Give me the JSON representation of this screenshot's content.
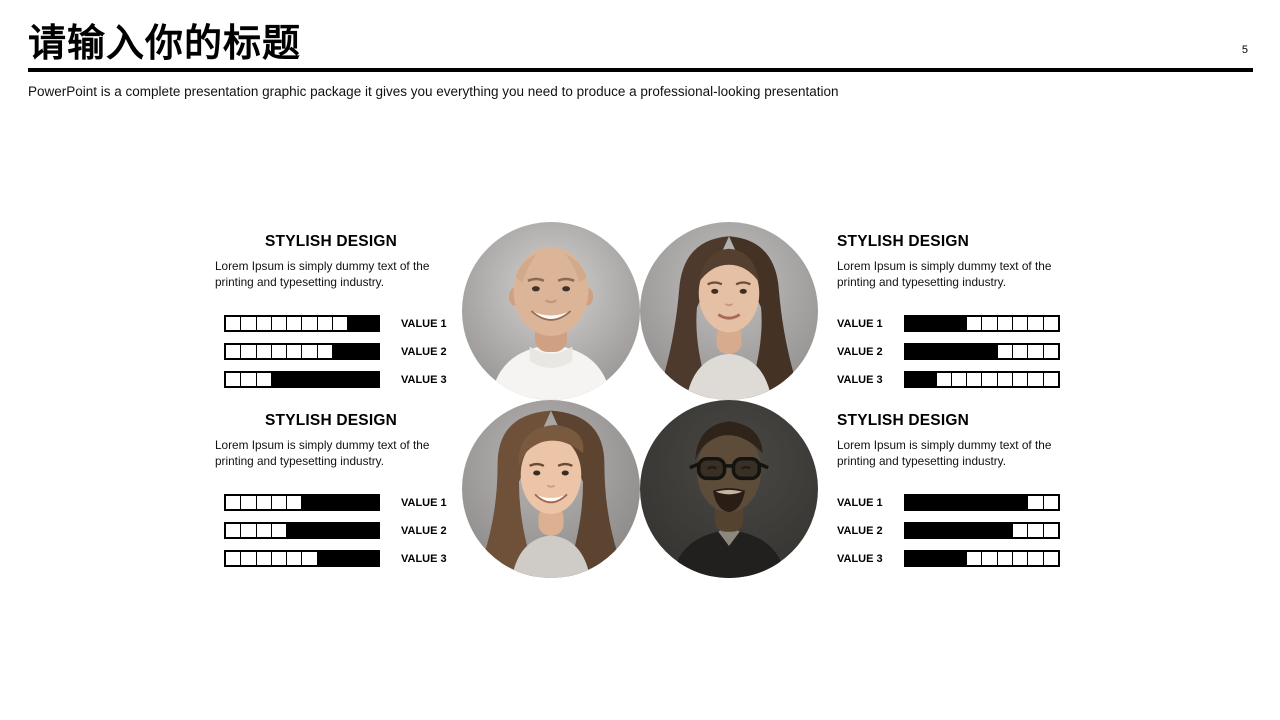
{
  "slide": {
    "title": "请输入你的标题",
    "page_number": "5",
    "subtitle": "PowerPoint is a complete presentation graphic package it gives you everything you need to produce a professional-looking presentation",
    "accent_color": "#000000",
    "background_color": "#ffffff"
  },
  "sections": {
    "top_left": {
      "heading": "STYLISH DESIGN",
      "body": "Lorem Ipsum is simply dummy text of the printing and typesetting industry.",
      "bar_align": "right",
      "bars": [
        {
          "label": "VALUE 1",
          "filled": 2,
          "total": 10
        },
        {
          "label": "VALUE 2",
          "filled": 3,
          "total": 10
        },
        {
          "label": "VALUE 3",
          "filled": 7,
          "total": 10
        }
      ]
    },
    "top_right": {
      "heading": "STYLISH DESIGN",
      "body": "Lorem Ipsum is simply dummy text of the printing and typesetting industry.",
      "bar_align": "left",
      "bars": [
        {
          "label": "VALUE 1",
          "filled": 4,
          "total": 10
        },
        {
          "label": "VALUE 2",
          "filled": 6,
          "total": 10
        },
        {
          "label": "VALUE 3",
          "filled": 2,
          "total": 10
        }
      ]
    },
    "bottom_left": {
      "heading": "STYLISH DESIGN",
      "body": "Lorem Ipsum is simply dummy text of the printing and typesetting industry.",
      "bar_align": "right",
      "bars": [
        {
          "label": "VALUE 1",
          "filled": 5,
          "total": 10
        },
        {
          "label": "VALUE 2",
          "filled": 6,
          "total": 10
        },
        {
          "label": "VALUE 3",
          "filled": 4,
          "total": 10
        }
      ]
    },
    "bottom_right": {
      "heading": "STYLISH DESIGN",
      "body": "Lorem Ipsum is simply dummy text of the printing and typesetting industry.",
      "bar_align": "left",
      "bars": [
        {
          "label": "VALUE 1",
          "filled": 8,
          "total": 10
        },
        {
          "label": "VALUE 2",
          "filled": 7,
          "total": 10
        },
        {
          "label": "VALUE 3",
          "filled": 4,
          "total": 10
        }
      ]
    }
  },
  "photos": [
    {
      "description": "Bald smiling man in white shirt on gray studio background"
    },
    {
      "description": "Young woman with long wavy brown hair on gray studio background"
    },
    {
      "description": "Smiling young woman with long brown hair on gray studio background"
    },
    {
      "description": "Laughing young man with glasses in dark suit, low-key dark photo"
    }
  ]
}
